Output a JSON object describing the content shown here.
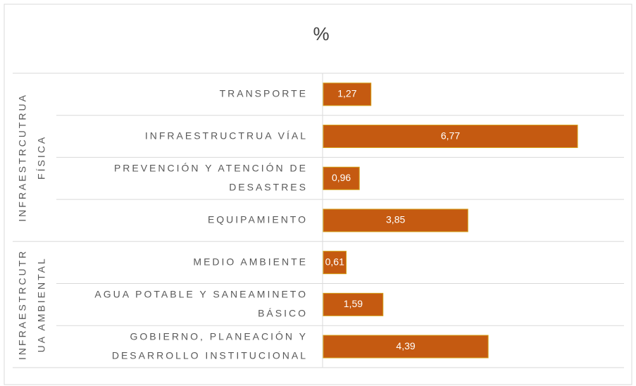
{
  "chart_data": {
    "type": "bar",
    "orientation": "horizontal",
    "title": "%",
    "groups": [
      {
        "label": [
          "INFRAESTRCUTRUA",
          "FÍSICA"
        ],
        "size": 4
      },
      {
        "label": [
          "INFRAESTRCUTR",
          "UA AMBIENTAL"
        ],
        "size": 3
      }
    ],
    "categories": [
      [
        "TRANSPORTE"
      ],
      [
        "INFRAESTRUCTRUA VÍAL"
      ],
      [
        "PREVENCIÓN Y ATENCIÓN DE",
        "DESASTRES"
      ],
      [
        "EQUIPAMIENTO"
      ],
      [
        "MEDIO AMBIENTE"
      ],
      [
        "AGUA POTABLE Y SANEAMINETO",
        "BÁSICO"
      ],
      [
        "GOBIERNO, PLANEACIÓN Y",
        "DESARROLLO INSTITUCIONAL"
      ]
    ],
    "values": [
      1.27,
      6.77,
      0.96,
      3.85,
      0.61,
      1.59,
      4.39
    ],
    "value_labels": [
      "1,27",
      "6,77",
      "0,96",
      "3,85",
      "0,61",
      "1,59",
      "4,39"
    ],
    "color": "#c55a11"
  }
}
